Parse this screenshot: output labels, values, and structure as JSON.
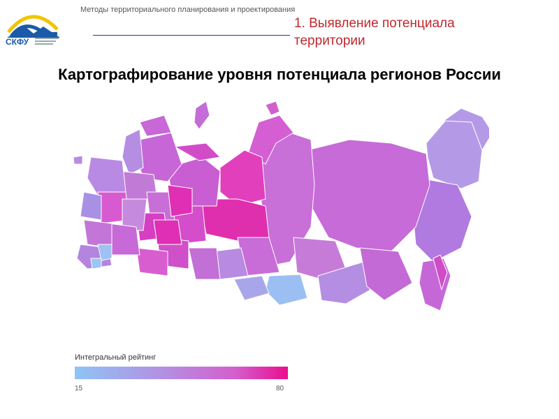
{
  "header": {
    "course_title": "Методы территориального планирования и проектирования",
    "logo_text": "СКФУ",
    "section_title": "1. Выявление потенциала территории"
  },
  "main": {
    "title": "Картографирование уровня потенциала регионов России"
  },
  "legend": {
    "title": "Интегральный рейтинг",
    "min": "15",
    "max": "80"
  },
  "colors": {
    "accent_red": "#c0282d",
    "low": "#8fc4f6",
    "mid": "#b68be0",
    "high": "#ea0e8e"
  }
}
